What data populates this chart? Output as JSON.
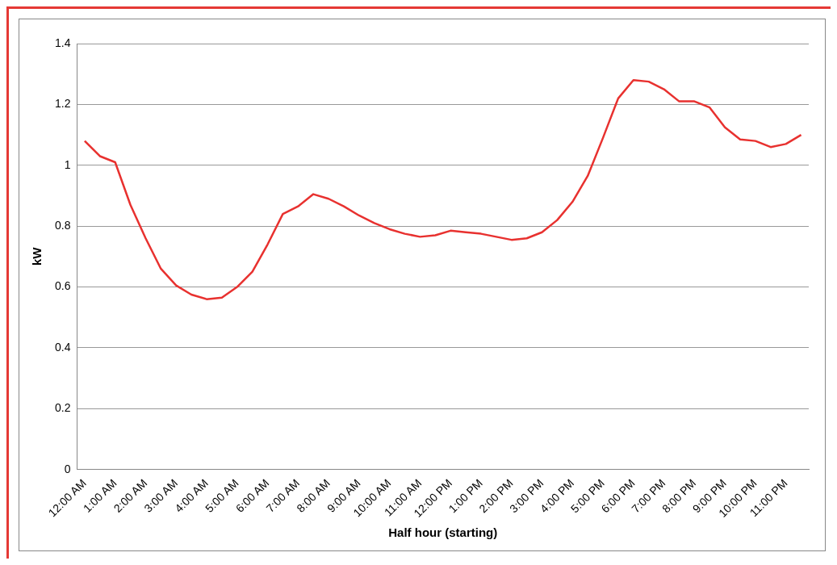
{
  "chart_data": {
    "type": "line",
    "xlabel": "Half hour (starting)",
    "ylabel": "kW",
    "categories": [
      "12:00 AM",
      null,
      "1:00 AM",
      null,
      "2:00 AM",
      null,
      "3:00 AM",
      null,
      "4:00 AM",
      null,
      "5:00 AM",
      null,
      "6:00 AM",
      null,
      "7:00 AM",
      null,
      "8:00 AM",
      null,
      "9:00 AM",
      null,
      "10:00 AM",
      null,
      "11:00 AM",
      null,
      "12:00 PM",
      null,
      "1:00 PM",
      null,
      "2:00 PM",
      null,
      "3:00 PM",
      null,
      "4:00 PM",
      null,
      "5:00 PM",
      null,
      "6:00 PM",
      null,
      "7:00 PM",
      null,
      "8:00 PM",
      null,
      "9:00 PM",
      null,
      "10:00 PM",
      null,
      "11:00 PM",
      null
    ],
    "series": [
      {
        "color": "#e8312f",
        "values": [
          1.08,
          1.03,
          1.01,
          0.87,
          0.76,
          0.66,
          0.605,
          0.575,
          0.56,
          0.565,
          0.6,
          0.65,
          0.74,
          0.84,
          0.865,
          0.905,
          0.89,
          0.865,
          0.835,
          0.81,
          0.79,
          0.775,
          0.765,
          0.77,
          0.785,
          0.78,
          0.775,
          0.765,
          0.755,
          0.76,
          0.78,
          0.82,
          0.88,
          0.965,
          1.09,
          1.22,
          1.28,
          1.275,
          1.25,
          1.21,
          1.21,
          1.19,
          1.125,
          1.085,
          1.08,
          1.06,
          1.07,
          1.1
        ]
      }
    ],
    "ylim": [
      0,
      1.4
    ],
    "yticks": [
      0,
      0.2,
      0.4,
      0.6,
      0.8,
      1,
      1.2,
      1.4
    ],
    "grid": "y",
    "legend": false,
    "marker": "none",
    "line_style": "solid"
  }
}
